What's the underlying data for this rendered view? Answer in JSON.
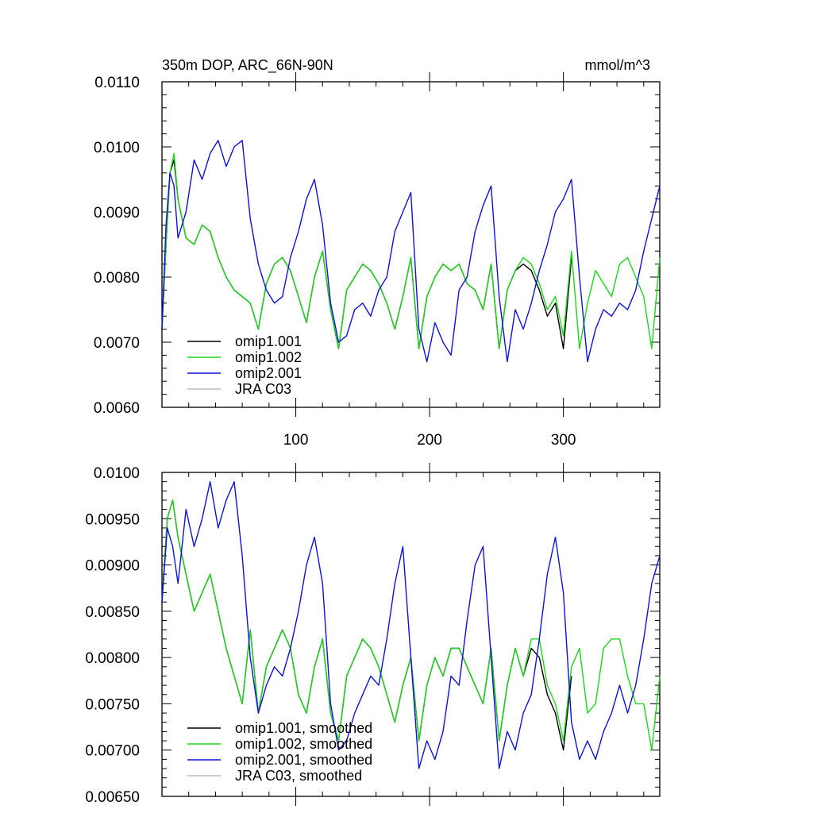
{
  "page": {
    "title": "350m DOP, ARC_66N-90N",
    "units": "mmol/m^3"
  },
  "colors": {
    "omip1_001": "#000000",
    "omip1_002": "#1ed51e",
    "omip2_001": "#1010d8",
    "jra_c03": "#bbbbbb"
  },
  "chart_data": [
    {
      "type": "line",
      "title": "350m DOP, ARC_66N-90N",
      "units_label": "mmol/m^3",
      "xlim": [
        0,
        372
      ],
      "ylim": [
        0.006,
        0.011
      ],
      "x_ticks": [
        100,
        200,
        300
      ],
      "x_tick_labels": [
        "100",
        "200",
        "300"
      ],
      "y_ticks": [
        0.006,
        0.007,
        0.008,
        0.009,
        0.01,
        0.011
      ],
      "y_tick_labels": [
        "0.0060",
        "0.0070",
        "0.0080",
        "0.0090",
        "0.0100",
        "0.0110"
      ],
      "legend_position": "bottom-left",
      "series": [
        {
          "name": "omip1.001",
          "color_key": "omip1_001",
          "x": [
            0,
            3,
            6,
            9,
            12,
            18,
            24,
            30,
            36,
            42,
            48,
            54,
            60,
            66,
            72,
            78,
            84,
            90,
            96,
            102,
            108,
            114,
            120,
            126,
            132,
            138,
            144,
            150,
            156,
            162,
            168,
            174,
            180,
            186,
            192,
            198,
            204,
            210,
            216,
            222,
            228,
            234,
            240,
            246,
            252,
            258,
            264,
            270,
            276,
            282,
            288,
            294,
            300,
            306
          ],
          "y": [
            0.0072,
            0.0085,
            0.0096,
            0.0098,
            0.0092,
            0.0086,
            0.0085,
            0.0088,
            0.0087,
            0.0083,
            0.008,
            0.0078,
            0.0077,
            0.0076,
            0.0072,
            0.0079,
            0.0082,
            0.0083,
            0.0081,
            0.0077,
            0.0073,
            0.008,
            0.0084,
            0.0075,
            0.0069,
            0.0078,
            0.008,
            0.0082,
            0.0081,
            0.0079,
            0.0076,
            0.0072,
            0.0077,
            0.0083,
            0.0069,
            0.0077,
            0.008,
            0.0082,
            0.0081,
            0.0082,
            0.0079,
            0.0078,
            0.0075,
            0.0082,
            0.0069,
            0.0078,
            0.0081,
            0.0082,
            0.0081,
            0.0078,
            0.0074,
            0.0076,
            0.0069,
            0.0083
          ]
        },
        {
          "name": "omip1.002",
          "color_key": "omip1_002",
          "x": [
            0,
            3,
            6,
            9,
            12,
            18,
            24,
            30,
            36,
            42,
            48,
            54,
            60,
            66,
            72,
            78,
            84,
            90,
            96,
            102,
            108,
            114,
            120,
            126,
            132,
            138,
            144,
            150,
            156,
            162,
            168,
            174,
            180,
            186,
            192,
            198,
            204,
            210,
            216,
            222,
            228,
            234,
            240,
            246,
            252,
            258,
            264,
            270,
            276,
            282,
            288,
            294,
            300,
            306,
            312,
            318,
            324,
            330,
            336,
            342,
            348,
            354,
            360,
            366,
            372
          ],
          "y": [
            0.0072,
            0.0085,
            0.0096,
            0.0099,
            0.0092,
            0.0086,
            0.0085,
            0.0088,
            0.0087,
            0.0083,
            0.008,
            0.0078,
            0.0077,
            0.0076,
            0.0072,
            0.0079,
            0.0082,
            0.0083,
            0.0081,
            0.0077,
            0.0073,
            0.008,
            0.0084,
            0.0075,
            0.0069,
            0.0078,
            0.008,
            0.0082,
            0.0081,
            0.0079,
            0.0076,
            0.0072,
            0.0077,
            0.0083,
            0.0069,
            0.0077,
            0.008,
            0.0082,
            0.0081,
            0.0082,
            0.0079,
            0.0078,
            0.0075,
            0.0082,
            0.0069,
            0.0078,
            0.0081,
            0.0083,
            0.0082,
            0.0079,
            0.0075,
            0.0077,
            0.0071,
            0.0084,
            0.0069,
            0.0076,
            0.0081,
            0.0079,
            0.0077,
            0.0082,
            0.0083,
            0.008,
            0.0077,
            0.0069,
            0.0083
          ]
        },
        {
          "name": "omip2.001",
          "color_key": "omip2_001",
          "x": [
            0,
            3,
            6,
            9,
            12,
            18,
            24,
            30,
            36,
            42,
            48,
            54,
            60,
            66,
            72,
            78,
            84,
            90,
            96,
            102,
            108,
            114,
            120,
            126,
            132,
            138,
            144,
            150,
            156,
            162,
            168,
            174,
            180,
            186,
            192,
            198,
            204,
            210,
            216,
            222,
            228,
            234,
            240,
            246,
            252,
            258,
            264,
            270,
            276,
            282,
            288,
            294,
            300,
            306,
            312,
            318,
            324,
            330,
            336,
            342,
            348,
            354,
            360,
            366,
            372
          ],
          "y": [
            0.0072,
            0.0088,
            0.0096,
            0.0094,
            0.0086,
            0.009,
            0.0098,
            0.0095,
            0.0099,
            0.0101,
            0.0097,
            0.01,
            0.0101,
            0.0089,
            0.0082,
            0.0078,
            0.0076,
            0.0077,
            0.0083,
            0.0087,
            0.0092,
            0.0095,
            0.0088,
            0.0076,
            0.007,
            0.0071,
            0.0075,
            0.0076,
            0.0074,
            0.0078,
            0.008,
            0.0087,
            0.009,
            0.0093,
            0.0072,
            0.0067,
            0.0073,
            0.007,
            0.0068,
            0.0078,
            0.008,
            0.0087,
            0.0091,
            0.0094,
            0.0077,
            0.0067,
            0.0075,
            0.0072,
            0.0076,
            0.0081,
            0.0085,
            0.009,
            0.0092,
            0.0095,
            0.008,
            0.0067,
            0.0072,
            0.0075,
            0.0074,
            0.0076,
            0.0075,
            0.0078,
            0.0084,
            0.0089,
            0.0094
          ]
        },
        {
          "name": "JRA C03",
          "color_key": "jra_c03",
          "x": [],
          "y": []
        }
      ]
    },
    {
      "type": "line",
      "xlim": [
        0,
        372
      ],
      "ylim": [
        0.0065,
        0.01
      ],
      "x_ticks": [
        100,
        200,
        300
      ],
      "x_tick_labels": [],
      "y_ticks": [
        0.0065,
        0.007,
        0.0075,
        0.008,
        0.0085,
        0.009,
        0.0095,
        0.01
      ],
      "y_tick_labels": [
        "0.00650",
        "0.00700",
        "0.00750",
        "0.00800",
        "0.00850",
        "0.00900",
        "0.00950",
        "0.0100"
      ],
      "legend_position": "bottom-left",
      "series": [
        {
          "name": "omip1.001, smoothed",
          "color_key": "omip1_001",
          "x": [
            0,
            4,
            8,
            12,
            18,
            24,
            30,
            36,
            42,
            48,
            54,
            60,
            66,
            72,
            78,
            84,
            90,
            96,
            102,
            108,
            114,
            120,
            126,
            132,
            138,
            144,
            150,
            156,
            162,
            168,
            174,
            180,
            186,
            192,
            198,
            204,
            210,
            216,
            222,
            228,
            234,
            240,
            246,
            252,
            258,
            264,
            270,
            276,
            282,
            288,
            294,
            300,
            306
          ],
          "y": [
            0.0086,
            0.0095,
            0.0097,
            0.0093,
            0.0089,
            0.0085,
            0.0087,
            0.0089,
            0.0085,
            0.0081,
            0.0078,
            0.0075,
            0.0083,
            0.0074,
            0.0079,
            0.0081,
            0.0083,
            0.0081,
            0.0076,
            0.0074,
            0.0079,
            0.0082,
            0.0074,
            0.0071,
            0.0078,
            0.008,
            0.0082,
            0.0081,
            0.0079,
            0.0076,
            0.0073,
            0.0077,
            0.008,
            0.0071,
            0.0077,
            0.008,
            0.0078,
            0.0081,
            0.0081,
            0.0079,
            0.0077,
            0.0075,
            0.0081,
            0.0071,
            0.0077,
            0.0081,
            0.0078,
            0.0081,
            0.008,
            0.0076,
            0.0074,
            0.007,
            0.0078
          ]
        },
        {
          "name": "omip1.002, smoothed",
          "color_key": "omip1_002",
          "x": [
            0,
            4,
            8,
            12,
            18,
            24,
            30,
            36,
            42,
            48,
            54,
            60,
            66,
            72,
            78,
            84,
            90,
            96,
            102,
            108,
            114,
            120,
            126,
            132,
            138,
            144,
            150,
            156,
            162,
            168,
            174,
            180,
            186,
            192,
            198,
            204,
            210,
            216,
            222,
            228,
            234,
            240,
            246,
            252,
            258,
            264,
            270,
            276,
            282,
            288,
            294,
            300,
            306,
            312,
            318,
            324,
            330,
            336,
            342,
            348,
            354,
            360,
            366,
            372
          ],
          "y": [
            0.0086,
            0.0095,
            0.0097,
            0.0093,
            0.0089,
            0.0085,
            0.0087,
            0.0089,
            0.0085,
            0.0081,
            0.0078,
            0.0075,
            0.0083,
            0.0074,
            0.0079,
            0.0081,
            0.0083,
            0.0081,
            0.0076,
            0.0074,
            0.0079,
            0.0082,
            0.0074,
            0.0071,
            0.0078,
            0.008,
            0.0082,
            0.0081,
            0.0079,
            0.0076,
            0.0073,
            0.0077,
            0.008,
            0.0071,
            0.0077,
            0.008,
            0.0078,
            0.0081,
            0.0081,
            0.0079,
            0.0077,
            0.0075,
            0.0081,
            0.0071,
            0.0077,
            0.0081,
            0.0078,
            0.0082,
            0.0082,
            0.0077,
            0.0075,
            0.0071,
            0.0079,
            0.0081,
            0.0074,
            0.0075,
            0.0081,
            0.0082,
            0.0082,
            0.0078,
            0.0075,
            0.0075,
            0.007,
            0.0078
          ]
        },
        {
          "name": "omip2.001, smoothed",
          "color_key": "omip2_001",
          "x": [
            0,
            4,
            8,
            12,
            18,
            24,
            30,
            36,
            42,
            48,
            54,
            60,
            66,
            72,
            78,
            84,
            90,
            96,
            102,
            108,
            114,
            120,
            126,
            132,
            138,
            144,
            150,
            156,
            162,
            168,
            174,
            180,
            186,
            192,
            198,
            204,
            210,
            216,
            222,
            228,
            234,
            240,
            246,
            252,
            258,
            264,
            270,
            276,
            282,
            288,
            294,
            300,
            306,
            312,
            318,
            324,
            330,
            336,
            342,
            348,
            354,
            360,
            366,
            372
          ],
          "y": [
            0.0086,
            0.0094,
            0.0092,
            0.0088,
            0.0096,
            0.0092,
            0.0095,
            0.0099,
            0.0094,
            0.0097,
            0.0099,
            0.0091,
            0.008,
            0.0074,
            0.0077,
            0.0079,
            0.0078,
            0.0081,
            0.0085,
            0.009,
            0.0093,
            0.0088,
            0.0075,
            0.007,
            0.0071,
            0.0074,
            0.0076,
            0.0078,
            0.0077,
            0.0082,
            0.0088,
            0.0092,
            0.008,
            0.0068,
            0.0071,
            0.0069,
            0.0072,
            0.0078,
            0.0077,
            0.0084,
            0.009,
            0.0092,
            0.008,
            0.0068,
            0.0072,
            0.007,
            0.0074,
            0.0076,
            0.0082,
            0.0089,
            0.0093,
            0.0087,
            0.0073,
            0.0069,
            0.0071,
            0.0069,
            0.0072,
            0.0074,
            0.0077,
            0.0074,
            0.0077,
            0.0082,
            0.0088,
            0.0091
          ]
        },
        {
          "name": "JRA C03, smoothed",
          "color_key": "jra_c03",
          "x": [],
          "y": []
        }
      ]
    }
  ]
}
